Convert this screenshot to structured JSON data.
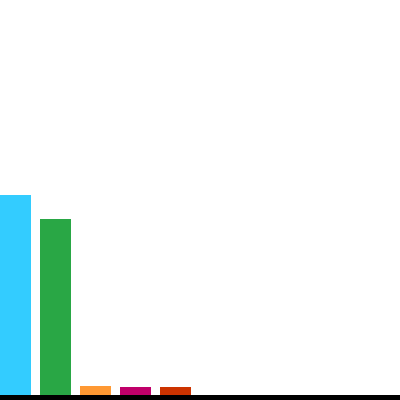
{
  "chart_data": {
    "type": "bar",
    "values": [
      200,
      176,
      9,
      8,
      8
    ],
    "colors": [
      "#33ccff",
      "#29a745",
      "#ff9933",
      "#c0006a",
      "#cc3300"
    ],
    "axis_color": "#000000",
    "ylim": [
      0,
      400
    ],
    "grid": false,
    "legend": "none"
  }
}
